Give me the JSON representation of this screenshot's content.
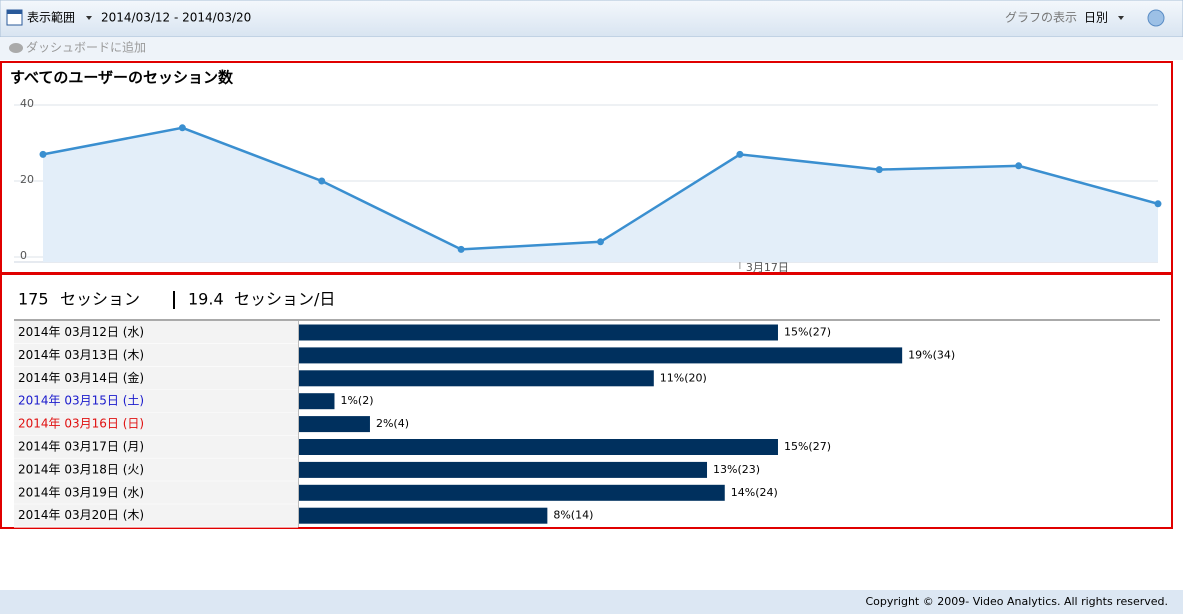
{
  "toolbar": {
    "range_label": "表示範囲",
    "range": "2014/03/12 - 2014/03/20",
    "graph_label": "グラフの表示",
    "graph_mode": "日別",
    "add_dashboard": "ダッシュボードに追加"
  },
  "chart_data": {
    "type": "line",
    "title": "すべてのユーザーのセッション数",
    "categories": [
      null,
      null,
      null,
      null,
      null,
      "3月17日",
      null,
      null,
      null
    ],
    "values": [
      27,
      34,
      20,
      2,
      4,
      27,
      23,
      24,
      14
    ],
    "color": "#3a8fd0",
    "fill": "#e3eef9",
    "ylim": [
      0,
      40
    ],
    "yticks": [
      0,
      20,
      40
    ],
    "grid": true
  },
  "summary": {
    "total": 175,
    "total_unit": "セッション",
    "per_day": 19.4,
    "per_day_unit": "セッション/日"
  },
  "table": {
    "bar_color": "#00305e",
    "rows": [
      {
        "date": "2014年 03月12日 (水)",
        "color": "#000000",
        "value": 27,
        "value_label": "15%(27)"
      },
      {
        "date": "2014年 03月13日 (木)",
        "color": "#000000",
        "value": 34,
        "value_label": "19%(34)"
      },
      {
        "date": "2014年 03月14日 (金)",
        "color": "#000000",
        "value": 20,
        "value_label": "11%(20)"
      },
      {
        "date": "2014年 03月15日 (土)",
        "color": "#1a1acc",
        "value": 2,
        "value_label": "1%(2)"
      },
      {
        "date": "2014年 03月16日 (日)",
        "color": "#e01010",
        "value": 4,
        "value_label": "2%(4)"
      },
      {
        "date": "2014年 03月17日 (月)",
        "color": "#000000",
        "value": 27,
        "value_label": "15%(27)"
      },
      {
        "date": "2014年 03月18日 (火)",
        "color": "#000000",
        "value": 23,
        "value_label": "13%(23)"
      },
      {
        "date": "2014年 03月19日 (水)",
        "color": "#000000",
        "value": 24,
        "value_label": "14%(24)"
      },
      {
        "date": "2014年 03月20日 (木)",
        "color": "#000000",
        "value": 14,
        "value_label": "8%(14)"
      }
    ]
  },
  "footer": "Copyright © 2009- Video Analytics. All rights reserved."
}
